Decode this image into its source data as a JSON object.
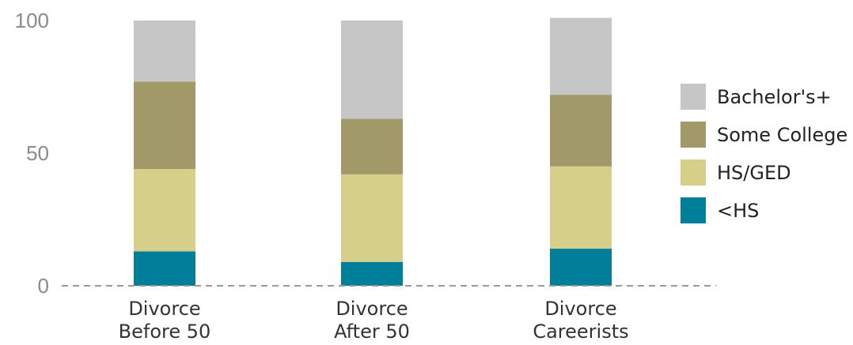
{
  "chart_data": {
    "type": "bar",
    "stacked": true,
    "categories": [
      [
        "Divorce",
        "Before 50"
      ],
      [
        "Divorce",
        "After 50"
      ],
      [
        "Divorce",
        "Careerists"
      ]
    ],
    "series": [
      {
        "name": "<HS",
        "color": "#007e9a",
        "values": [
          13,
          9,
          14
        ]
      },
      {
        "name": "HS/GED",
        "color": "#d6cf8a",
        "values": [
          31,
          33,
          31
        ]
      },
      {
        "name": "Some College",
        "color": "#a19a68",
        "values": [
          33,
          21,
          27
        ]
      },
      {
        "name": "Bachelor's+",
        "color": "#c6c6c6",
        "values": [
          23,
          37,
          29
        ]
      }
    ],
    "yticks": [
      0,
      50,
      100
    ],
    "ylim": [
      0,
      100
    ],
    "legend": {
      "position": "right",
      "order": [
        "Bachelor's+",
        "Some College",
        "HS/GED",
        "<HS"
      ]
    },
    "baseline_style": "dashed",
    "grid": false
  }
}
